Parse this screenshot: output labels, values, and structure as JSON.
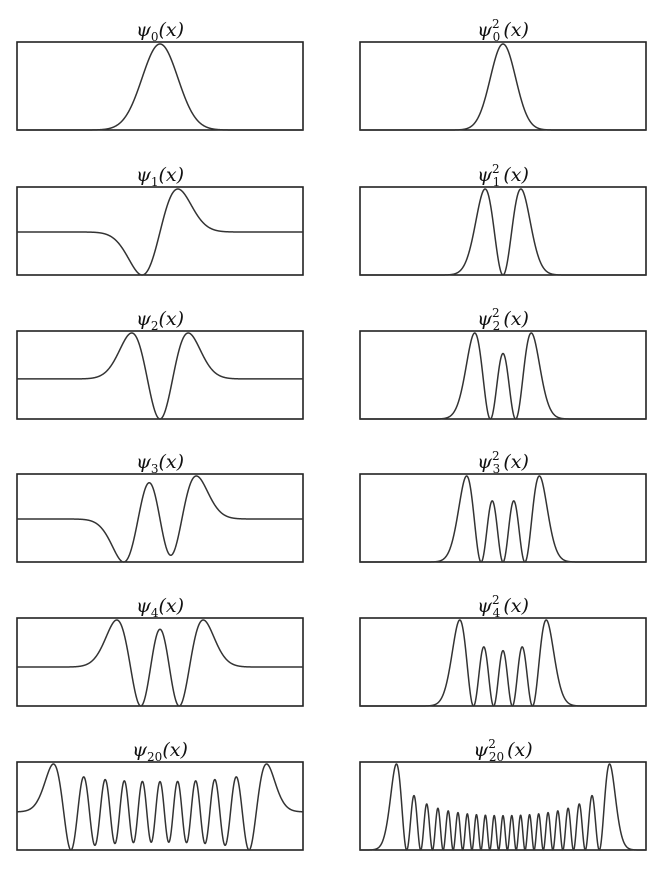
{
  "chart_data": [
    {
      "type": "line",
      "function": "hermite_wavefunction",
      "n": 0,
      "squared": false,
      "title_symbol": "ψ",
      "title_sub": "0",
      "title_sup": "",
      "title_arg": "(x)"
    },
    {
      "type": "line",
      "function": "hermite_wavefunction",
      "n": 0,
      "squared": true,
      "title_symbol": "ψ",
      "title_sub": "0",
      "title_sup": "2",
      "title_arg": "(x)"
    },
    {
      "type": "line",
      "function": "hermite_wavefunction",
      "n": 1,
      "squared": false,
      "title_symbol": "ψ",
      "title_sub": "1",
      "title_sup": "",
      "title_arg": "(x)"
    },
    {
      "type": "line",
      "function": "hermite_wavefunction",
      "n": 1,
      "squared": true,
      "title_symbol": "ψ",
      "title_sub": "1",
      "title_sup": "2",
      "title_arg": "(x)"
    },
    {
      "type": "line",
      "function": "hermite_wavefunction",
      "n": 2,
      "squared": false,
      "title_symbol": "ψ",
      "title_sub": "2",
      "title_sup": "",
      "title_arg": "(x)"
    },
    {
      "type": "line",
      "function": "hermite_wavefunction",
      "n": 2,
      "squared": true,
      "title_symbol": "ψ",
      "title_sub": "2",
      "title_sup": "2",
      "title_arg": "(x)"
    },
    {
      "type": "line",
      "function": "hermite_wavefunction",
      "n": 3,
      "squared": false,
      "title_symbol": "ψ",
      "title_sub": "3",
      "title_sup": "",
      "title_arg": "(x)"
    },
    {
      "type": "line",
      "function": "hermite_wavefunction",
      "n": 3,
      "squared": true,
      "title_symbol": "ψ",
      "title_sub": "3",
      "title_sup": "2",
      "title_arg": "(x)"
    },
    {
      "type": "line",
      "function": "hermite_wavefunction",
      "n": 4,
      "squared": false,
      "title_symbol": "ψ",
      "title_sub": "4",
      "title_sup": "",
      "title_arg": "(x)"
    },
    {
      "type": "line",
      "function": "hermite_wavefunction",
      "n": 4,
      "squared": true,
      "title_symbol": "ψ",
      "title_sub": "4",
      "title_sup": "2",
      "title_arg": "(x)"
    },
    {
      "type": "line",
      "function": "hermite_wavefunction",
      "n": 20,
      "squared": false,
      "title_symbol": "ψ",
      "title_sub": "20",
      "title_sup": "",
      "title_arg": "(x)"
    },
    {
      "type": "line",
      "function": "hermite_wavefunction",
      "n": 20,
      "squared": true,
      "title_symbol": "ψ",
      "title_sub": "20",
      "title_sup": "2",
      "title_arg": "(x)"
    }
  ],
  "style": {
    "line_color": "#333333",
    "frame_color": "#222222",
    "background": "#ffffff"
  },
  "axes": {
    "x_range": [
      -8,
      8
    ],
    "ticks_visible": false,
    "grid": false,
    "legend": "none"
  }
}
